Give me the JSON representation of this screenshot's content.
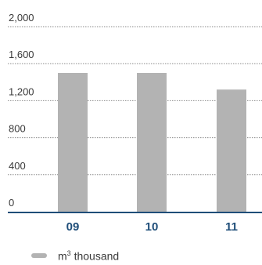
{
  "chart_data": {
    "type": "bar",
    "categories": [
      "09",
      "10",
      "11"
    ],
    "series": [
      {
        "name": "m3 thousand",
        "values": [
          1500,
          1500,
          1320
        ]
      }
    ],
    "ylim": [
      0,
      2000
    ],
    "yticks": [
      "0",
      "400",
      "800",
      "1,200",
      "1,600",
      "2,000"
    ],
    "ytick_values": [
      0,
      400,
      800,
      1200,
      1600,
      2000
    ],
    "grid": true,
    "legend_position": "bottom-left",
    "colors": {
      "bar": "#b3b3b3",
      "axis": "#1f4e79",
      "grid": "#8a8a8a",
      "category_text": "#1f4e79"
    }
  },
  "legend": {
    "unit_prefix": "m",
    "unit_sup": "3",
    "unit_suffix": " thousand"
  }
}
